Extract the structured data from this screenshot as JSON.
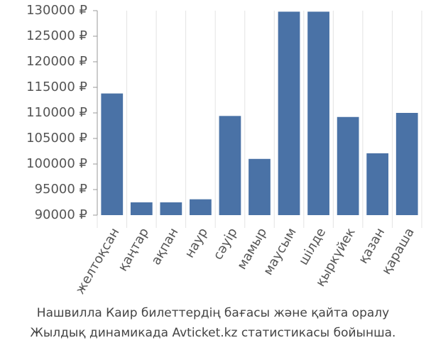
{
  "chart_data": {
    "type": "bar",
    "categories": [
      "желтоқсан",
      "қаңтар",
      "ақпан",
      "наур",
      "сәуір",
      "мамыр",
      "маусым",
      "шілде",
      "қыркүйек",
      "қазан",
      "қараша"
    ],
    "values": [
      113800,
      92500,
      92500,
      93100,
      109400,
      101000,
      129800,
      129800,
      109200,
      102100,
      110000
    ],
    "color": "#4a72a6",
    "ylim": [
      90000,
      130000
    ],
    "yticks": [
      {
        "value": 90000,
        "label": "90000 ₽"
      },
      {
        "value": 95000,
        "label": "95000 ₽"
      },
      {
        "value": 100000,
        "label": "100000 ₽"
      },
      {
        "value": 105000,
        "label": "105000 ₽"
      },
      {
        "value": 110000,
        "label": "110000 ₽"
      },
      {
        "value": 115000,
        "label": "115000 ₽"
      },
      {
        "value": 120000,
        "label": "120000 ₽"
      },
      {
        "value": 125000,
        "label": "125000 ₽"
      },
      {
        "value": 130000,
        "label": "130000 ₽"
      }
    ],
    "caption": [
      "Нашвилла Каир билеттердің бағасы және қайта оралу",
      "Жылдық динамикада Avticket.kz статистикасы бойынша."
    ]
  }
}
